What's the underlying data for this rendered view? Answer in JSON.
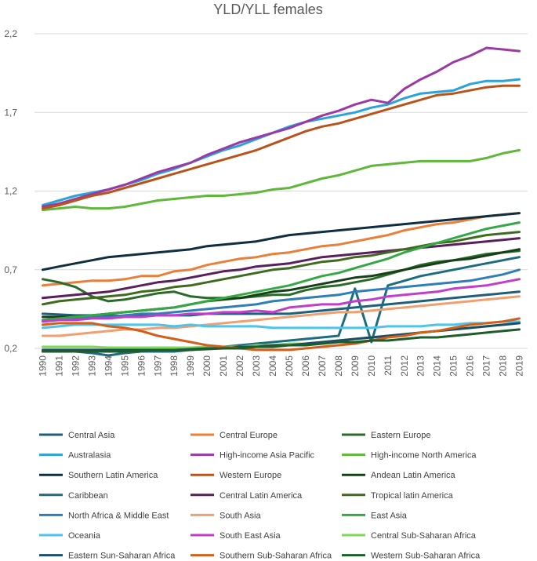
{
  "chart_data": {
    "type": "line",
    "title": "YLD/YLL females",
    "xlabel": "",
    "ylabel": "",
    "ylim": [
      0.2,
      2.2
    ],
    "yticks": [
      "0,2",
      "0,7",
      "1,2",
      "1,7",
      "2,2"
    ],
    "ytick_values": [
      0.2,
      0.7,
      1.2,
      1.7,
      2.2
    ],
    "grid": true,
    "legend_position": "bottom",
    "x": [
      "1990",
      "1991",
      "1992",
      "1993",
      "1994",
      "1995",
      "1996",
      "1997",
      "1998",
      "1999",
      "2000",
      "2001",
      "2002",
      "2003",
      "2004",
      "2005",
      "2006",
      "2007",
      "2008",
      "2009",
      "2010",
      "2011",
      "2012",
      "2013",
      "2014",
      "2015",
      "2016",
      "2017",
      "2018",
      "2019"
    ],
    "series": [
      {
        "name": "Central Asia",
        "color": "#1f5f7a",
        "values": [
          0.42,
          0.415,
          0.41,
          0.41,
          0.41,
          0.405,
          0.41,
          0.41,
          0.41,
          0.41,
          0.42,
          0.42,
          0.42,
          0.42,
          0.42,
          0.42,
          0.43,
          0.44,
          0.45,
          0.46,
          0.47,
          0.48,
          0.49,
          0.5,
          0.51,
          0.52,
          0.53,
          0.54,
          0.55,
          0.56
        ]
      },
      {
        "name": "Central Europe",
        "color": "#e8803a",
        "values": [
          0.6,
          0.61,
          0.62,
          0.63,
          0.63,
          0.64,
          0.66,
          0.66,
          0.69,
          0.7,
          0.73,
          0.75,
          0.77,
          0.78,
          0.8,
          0.81,
          0.83,
          0.85,
          0.86,
          0.88,
          0.9,
          0.92,
          0.95,
          0.97,
          0.99,
          1.0,
          1.02,
          1.04,
          1.05,
          1.06
        ]
      },
      {
        "name": "Eastern Europe",
        "color": "#2a6b2a",
        "values": [
          0.64,
          0.62,
          0.59,
          0.53,
          0.5,
          0.51,
          0.53,
          0.55,
          0.56,
          0.53,
          0.52,
          0.52,
          0.52,
          0.53,
          0.54,
          0.54,
          0.57,
          0.59,
          0.6,
          0.62,
          0.64,
          0.67,
          0.7,
          0.73,
          0.75,
          0.76,
          0.78,
          0.8,
          0.81,
          0.82
        ]
      },
      {
        "name": "Australasia",
        "color": "#2ba3d9",
        "values": [
          1.11,
          1.14,
          1.17,
          1.19,
          1.21,
          1.24,
          1.27,
          1.31,
          1.34,
          1.38,
          1.42,
          1.46,
          1.49,
          1.53,
          1.57,
          1.61,
          1.64,
          1.66,
          1.68,
          1.7,
          1.73,
          1.75,
          1.79,
          1.82,
          1.83,
          1.84,
          1.88,
          1.9,
          1.9,
          1.91
        ]
      },
      {
        "name": "High-income Asia Pacific",
        "color": "#9b39a6",
        "values": [
          1.1,
          1.12,
          1.15,
          1.18,
          1.21,
          1.24,
          1.28,
          1.32,
          1.35,
          1.38,
          1.43,
          1.47,
          1.51,
          1.54,
          1.57,
          1.6,
          1.64,
          1.68,
          1.71,
          1.75,
          1.78,
          1.76,
          1.85,
          1.91,
          1.96,
          2.02,
          2.06,
          2.11,
          2.1,
          2.09
        ]
      },
      {
        "name": "High-income North America",
        "color": "#5fb83a",
        "values": [
          1.08,
          1.09,
          1.1,
          1.09,
          1.09,
          1.1,
          1.12,
          1.14,
          1.15,
          1.16,
          1.17,
          1.17,
          1.18,
          1.19,
          1.21,
          1.22,
          1.25,
          1.28,
          1.3,
          1.33,
          1.36,
          1.37,
          1.38,
          1.39,
          1.39,
          1.39,
          1.39,
          1.41,
          1.44,
          1.46
        ]
      },
      {
        "name": "Southern Latin America",
        "color": "#0f2e40",
        "values": [
          0.7,
          0.72,
          0.74,
          0.76,
          0.78,
          0.79,
          0.8,
          0.81,
          0.82,
          0.83,
          0.85,
          0.86,
          0.87,
          0.88,
          0.9,
          0.92,
          0.93,
          0.94,
          0.95,
          0.96,
          0.97,
          0.98,
          0.99,
          1.0,
          1.01,
          1.02,
          1.03,
          1.04,
          1.05,
          1.06
        ]
      },
      {
        "name": "Western Europe",
        "color": "#b8531c",
        "values": [
          1.09,
          1.11,
          1.14,
          1.17,
          1.19,
          1.22,
          1.25,
          1.28,
          1.31,
          1.34,
          1.37,
          1.4,
          1.43,
          1.46,
          1.5,
          1.54,
          1.58,
          1.61,
          1.63,
          1.66,
          1.69,
          1.72,
          1.75,
          1.78,
          1.81,
          1.82,
          1.84,
          1.86,
          1.87,
          1.87
        ]
      },
      {
        "name": "Andean Latin America",
        "color": "#174019",
        "values": [
          0.4,
          0.4,
          0.4,
          0.41,
          0.42,
          0.43,
          0.44,
          0.45,
          0.46,
          0.48,
          0.5,
          0.51,
          0.52,
          0.54,
          0.56,
          0.57,
          0.59,
          0.61,
          0.63,
          0.65,
          0.66,
          0.68,
          0.7,
          0.72,
          0.74,
          0.76,
          0.77,
          0.79,
          0.81,
          0.83
        ]
      },
      {
        "name": "Caribbean",
        "color": "#1d6c80",
        "values": [
          0.18,
          0.18,
          0.18,
          0.17,
          0.155,
          0.17,
          0.18,
          0.18,
          0.18,
          0.19,
          0.2,
          0.21,
          0.22,
          0.23,
          0.24,
          0.25,
          0.26,
          0.27,
          0.28,
          0.58,
          0.24,
          0.6,
          0.63,
          0.66,
          0.68,
          0.7,
          0.72,
          0.74,
          0.76,
          0.78
        ]
      },
      {
        "name": "Central Latin America",
        "color": "#5a1f5c",
        "values": [
          0.52,
          0.53,
          0.54,
          0.55,
          0.56,
          0.58,
          0.6,
          0.62,
          0.63,
          0.65,
          0.67,
          0.69,
          0.7,
          0.72,
          0.73,
          0.74,
          0.76,
          0.78,
          0.79,
          0.8,
          0.81,
          0.82,
          0.83,
          0.84,
          0.85,
          0.86,
          0.87,
          0.88,
          0.89,
          0.9
        ]
      },
      {
        "name": "Tropical latin America",
        "color": "#3e6b1f",
        "values": [
          0.48,
          0.5,
          0.51,
          0.52,
          0.53,
          0.54,
          0.56,
          0.57,
          0.59,
          0.6,
          0.62,
          0.64,
          0.66,
          0.68,
          0.7,
          0.71,
          0.73,
          0.75,
          0.76,
          0.78,
          0.79,
          0.81,
          0.83,
          0.85,
          0.87,
          0.88,
          0.9,
          0.92,
          0.93,
          0.94
        ]
      },
      {
        "name": "North Africa & Middle East",
        "color": "#2e7eb8",
        "values": [
          0.38,
          0.39,
          0.39,
          0.4,
          0.4,
          0.41,
          0.42,
          0.42,
          0.43,
          0.44,
          0.45,
          0.46,
          0.47,
          0.48,
          0.5,
          0.51,
          0.52,
          0.53,
          0.54,
          0.56,
          0.57,
          0.58,
          0.59,
          0.6,
          0.61,
          0.62,
          0.63,
          0.65,
          0.67,
          0.7
        ]
      },
      {
        "name": "South Asia",
        "color": "#f0a070",
        "values": [
          0.28,
          0.28,
          0.29,
          0.3,
          0.31,
          0.32,
          0.32,
          0.33,
          0.33,
          0.34,
          0.35,
          0.36,
          0.37,
          0.38,
          0.39,
          0.4,
          0.41,
          0.42,
          0.43,
          0.43,
          0.44,
          0.45,
          0.46,
          0.47,
          0.48,
          0.49,
          0.5,
          0.51,
          0.52,
          0.53
        ]
      },
      {
        "name": "East Asia",
        "color": "#35a845",
        "values": [
          0.38,
          0.39,
          0.4,
          0.41,
          0.42,
          0.43,
          0.44,
          0.45,
          0.46,
          0.48,
          0.5,
          0.52,
          0.54,
          0.56,
          0.58,
          0.6,
          0.63,
          0.66,
          0.68,
          0.71,
          0.74,
          0.77,
          0.81,
          0.84,
          0.87,
          0.9,
          0.93,
          0.96,
          0.98,
          1.0
        ]
      },
      {
        "name": "Oceania",
        "color": "#4ec3ec",
        "values": [
          0.33,
          0.34,
          0.35,
          0.35,
          0.35,
          0.35,
          0.35,
          0.35,
          0.34,
          0.35,
          0.34,
          0.34,
          0.34,
          0.34,
          0.33,
          0.33,
          0.33,
          0.33,
          0.33,
          0.33,
          0.33,
          0.34,
          0.34,
          0.34,
          0.35,
          0.35,
          0.36,
          0.36,
          0.37,
          0.37
        ]
      },
      {
        "name": "South East Asia",
        "color": "#c23ec9",
        "values": [
          0.37,
          0.38,
          0.38,
          0.39,
          0.39,
          0.4,
          0.4,
          0.41,
          0.41,
          0.42,
          0.42,
          0.43,
          0.43,
          0.44,
          0.43,
          0.46,
          0.47,
          0.48,
          0.48,
          0.5,
          0.51,
          0.53,
          0.54,
          0.55,
          0.56,
          0.58,
          0.59,
          0.6,
          0.62,
          0.64
        ]
      },
      {
        "name": "Central Sub-Saharan Africa",
        "color": "#7ed957",
        "values": [
          0.21,
          0.21,
          0.21,
          0.21,
          0.205,
          0.205,
          0.205,
          0.205,
          0.205,
          0.205,
          0.21,
          0.21,
          0.21,
          0.22,
          0.22,
          0.23,
          0.23,
          0.24,
          0.25,
          0.26,
          0.27,
          0.28,
          0.29,
          0.3,
          0.31,
          0.32,
          0.33,
          0.34,
          0.35,
          0.36
        ]
      },
      {
        "name": "Eastern Sun-Saharan Africa",
        "color": "#1a4d66",
        "values": [
          0.19,
          0.19,
          0.19,
          0.19,
          0.19,
          0.19,
          0.19,
          0.19,
          0.19,
          0.195,
          0.2,
          0.2,
          0.21,
          0.21,
          0.22,
          0.22,
          0.23,
          0.24,
          0.25,
          0.26,
          0.27,
          0.28,
          0.29,
          0.3,
          0.31,
          0.32,
          0.33,
          0.34,
          0.35,
          0.36
        ]
      },
      {
        "name": "Southern Sub-Saharan Africa",
        "color": "#d2601a",
        "values": [
          0.35,
          0.36,
          0.36,
          0.36,
          0.34,
          0.33,
          0.31,
          0.28,
          0.26,
          0.24,
          0.22,
          0.21,
          0.2,
          0.19,
          0.19,
          0.19,
          0.2,
          0.21,
          0.22,
          0.23,
          0.25,
          0.27,
          0.28,
          0.3,
          0.31,
          0.33,
          0.35,
          0.36,
          0.37,
          0.39
        ]
      },
      {
        "name": "Western Sub-Saharan Africa",
        "color": "#1e5c2a",
        "values": [
          0.18,
          0.18,
          0.18,
          0.18,
          0.18,
          0.18,
          0.185,
          0.19,
          0.19,
          0.19,
          0.195,
          0.2,
          0.2,
          0.21,
          0.21,
          0.22,
          0.22,
          0.23,
          0.24,
          0.24,
          0.25,
          0.25,
          0.26,
          0.27,
          0.27,
          0.28,
          0.29,
          0.3,
          0.31,
          0.32
        ]
      }
    ]
  }
}
